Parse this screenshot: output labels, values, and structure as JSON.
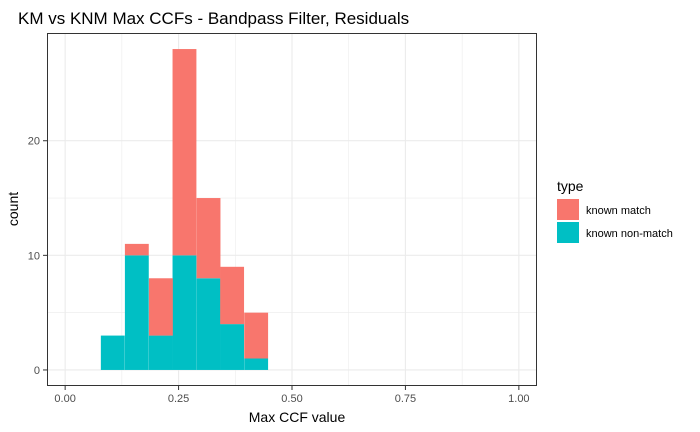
{
  "chart_data": {
    "type": "bar",
    "title": "KM vs KNM Max CCFs - Bandpass Filter, Residuals",
    "xlabel": "Max CCF value",
    "ylabel": "count",
    "xlim": [
      -0.04,
      1.04
    ],
    "ylim": [
      -1.4,
      29.4
    ],
    "x_ticks": [
      0,
      0.25,
      0.5,
      0.75,
      1.0
    ],
    "x_tick_labels": [
      "0.00",
      "0.25",
      "0.50",
      "0.75",
      "1.00"
    ],
    "y_ticks": [
      0,
      10,
      20
    ],
    "y_tick_labels": [
      "0",
      "10",
      "20"
    ],
    "stacked": true,
    "bin_width": 0.0526,
    "bins": [
      0.105,
      0.158,
      0.211,
      0.263,
      0.316,
      0.368,
      0.421
    ],
    "grid": true,
    "legend": {
      "title": "type",
      "position": "right",
      "items": [
        {
          "label": "known match",
          "color": "#F8766D"
        },
        {
          "label": "known non-match",
          "color": "#00BFC4"
        }
      ]
    },
    "series": [
      {
        "name": "known non-match",
        "color": "#00BFC4",
        "values": [
          3,
          10,
          3,
          10,
          8,
          4,
          1
        ]
      },
      {
        "name": "known match",
        "color": "#F8766D",
        "values": [
          0,
          1,
          5,
          18,
          7,
          5,
          4
        ]
      }
    ]
  }
}
